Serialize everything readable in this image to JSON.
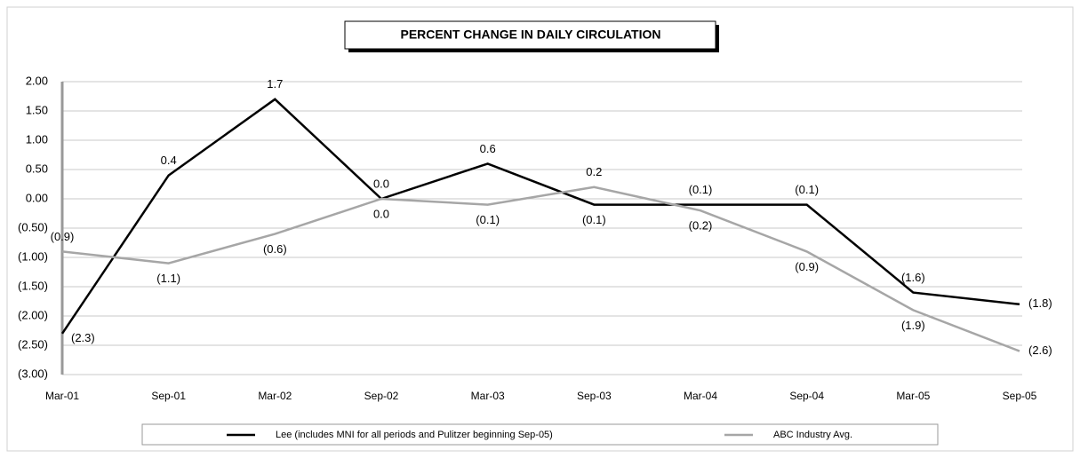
{
  "chart_data": {
    "type": "line",
    "title": "PERCENT CHANGE IN DAILY CIRCULATION",
    "categories": [
      "Mar-01",
      "Sep-01",
      "Mar-02",
      "Sep-02",
      "Mar-03",
      "Sep-03",
      "Mar-04",
      "Sep-04",
      "Mar-05",
      "Sep-05"
    ],
    "series": [
      {
        "name": "Lee (includes MNI for all periods and Pulitzer beginning Sep-05)",
        "color": "#000000",
        "values": [
          -2.3,
          0.4,
          1.7,
          0.0,
          0.6,
          -0.1,
          -0.1,
          -0.1,
          -1.6,
          -1.8
        ],
        "value_labels": [
          "(2.3)",
          "0.4",
          "1.7",
          "0.0",
          "0.6",
          "(0.1)",
          "(0.1)",
          "(0.1)",
          "(1.6)",
          "(1.8)"
        ]
      },
      {
        "name": "ABC Industry Avg.",
        "color": "#a6a6a6",
        "values": [
          -0.9,
          -1.1,
          -0.6,
          0.0,
          -0.1,
          0.2,
          -0.2,
          -0.9,
          -1.9,
          -2.6
        ],
        "value_labels": [
          "(0.9)",
          "(1.1)",
          "(0.6)",
          "0.0",
          "(0.1)",
          "0.2",
          "(0.2)",
          "(0.9)",
          "(1.9)",
          "(2.6)"
        ]
      }
    ],
    "ylim": [
      -3,
      2
    ],
    "yticks": [
      {
        "value": 2,
        "label": "2.00"
      },
      {
        "value": 1.5,
        "label": "1.50"
      },
      {
        "value": 1,
        "label": "1.00"
      },
      {
        "value": 0.5,
        "label": "0.50"
      },
      {
        "value": 0,
        "label": "0.00"
      },
      {
        "value": -0.5,
        "label": "(0.50)"
      },
      {
        "value": -1,
        "label": "(1.00)"
      },
      {
        "value": -1.5,
        "label": "(1.50)"
      },
      {
        "value": -2,
        "label": "(2.00)"
      },
      {
        "value": -2.5,
        "label": "(2.50)"
      },
      {
        "value": -3,
        "label": "(3.00)"
      }
    ],
    "grid": true,
    "legend": "bottom"
  }
}
